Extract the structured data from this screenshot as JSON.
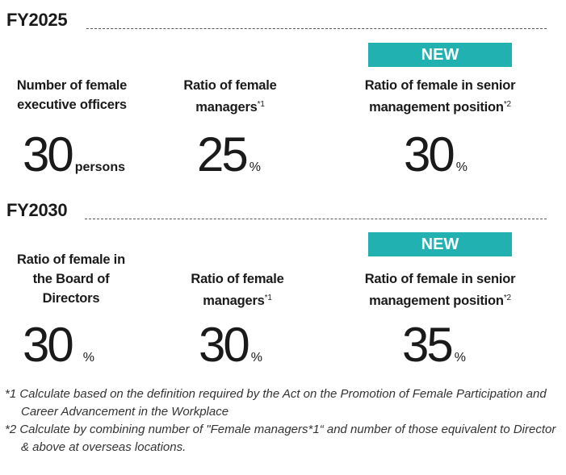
{
  "sections": [
    {
      "title": "FY2025",
      "badge": "NEW",
      "items": [
        {
          "label": "Number of female executive officers",
          "note": "",
          "value": "30",
          "unit": "persons"
        },
        {
          "label": "Ratio of female managers",
          "note": "*1",
          "value": "25",
          "unit": "%"
        },
        {
          "label": "Ratio of female in senior management position",
          "note": "*2",
          "value": "30",
          "unit": "%"
        }
      ]
    },
    {
      "title": "FY2030",
      "badge": "NEW",
      "items": [
        {
          "label": "Ratio of female in the Board of Directors",
          "note": "",
          "value": "30",
          "unit": "%"
        },
        {
          "label": "Ratio of female managers",
          "note": "*1",
          "value": "30",
          "unit": "%"
        },
        {
          "label": "Ratio of female in senior management position",
          "note": "*2",
          "value": "35",
          "unit": "%"
        }
      ]
    }
  ],
  "footnotes": [
    "*1 Calculate based on the definition required by the Act on the Promotion of Female Participation and Career Advancement in the Workplace",
    "*2 Calculate by combining number of \"Female managers*1“ and number of those equivalent to Director & above at overseas locations."
  ]
}
